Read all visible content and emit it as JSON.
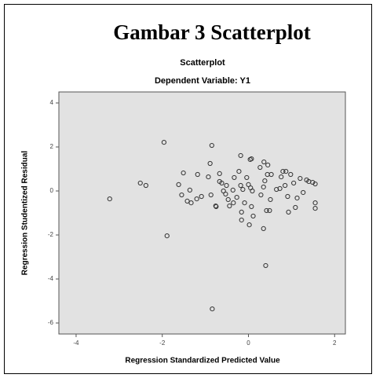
{
  "chart_data": {
    "type": "scatter",
    "title": "Gambar 3 Scatterplot",
    "subtitle": "Scatterplot",
    "caption": "Dependent Variable: Y1",
    "x_label": "Regression Standardized Predicted Value",
    "y_label": "Regression Studentized Residual",
    "xlim": [
      -4.4,
      2.25
    ],
    "xticks": [
      -4,
      -2,
      0,
      2
    ],
    "ylim": [
      -6.5,
      4.5
    ],
    "yticks": [
      -6,
      -4,
      -2,
      0,
      2,
      4
    ],
    "color": "#333333",
    "x": [
      -3.22,
      -2.51,
      -2.38,
      -1.96,
      -1.89,
      -1.62,
      -1.51,
      -1.36,
      -1.42,
      -1.33,
      -1.18,
      -1.2,
      -0.89,
      -0.85,
      -0.93,
      -0.87,
      -0.75,
      -0.67,
      -0.62,
      -0.67,
      -0.58,
      -0.51,
      -0.47,
      -0.44,
      -0.36,
      -0.33,
      -0.27,
      -0.22,
      -0.18,
      -0.18,
      -0.16,
      -0.13,
      -0.09,
      -0.04,
      0,
      0.04,
      0.07,
      0.09,
      0.07,
      0.05,
      -0.16,
      0.02,
      0.11,
      0.27,
      0.29,
      0.35,
      0.36,
      0.38,
      0.42,
      0.44,
      0.45,
      0.49,
      0.51,
      0.35,
      0.4,
      0.53,
      0.65,
      0.73,
      0.76,
      0.8,
      0.87,
      0.85,
      0.91,
      0.93,
      0.98,
      1.05,
      1.09,
      1.13,
      1.2,
      1.27,
      1.35,
      1.4,
      1.49,
      1.55,
      1.55,
      1.55,
      -0.84,
      -1.55,
      -1.09,
      -0.76,
      -0.53,
      -0.35
    ],
    "values": [
      -0.36,
      0.36,
      0.25,
      2.21,
      -2.04,
      0.29,
      0.82,
      0.04,
      -0.46,
      -0.54,
      0.75,
      -0.36,
      1.25,
      2.07,
      0.64,
      -0.18,
      -0.71,
      0.43,
      0.36,
      0.79,
      0,
      0.25,
      -0.39,
      -0.68,
      0.04,
      0.61,
      -0.29,
      0.89,
      0.25,
      1.61,
      -0.96,
      0.07,
      -0.54,
      0.61,
      0.29,
      1.43,
      1.46,
      0,
      -0.71,
      0.14,
      -1.32,
      -1.54,
      -1.14,
      1.07,
      -0.18,
      0.18,
      1.32,
      0.46,
      -0.89,
      0.75,
      1.18,
      -0.89,
      -0.39,
      -1.71,
      -3.39,
      0.75,
      0.07,
      0.11,
      0.64,
      0.89,
      0.89,
      0.25,
      -0.25,
      -0.96,
      0.75,
      0.36,
      -0.75,
      -0.32,
      0.57,
      -0.07,
      0.5,
      0.43,
      0.39,
      0.32,
      -0.54,
      -0.79,
      -5.36,
      -0.18,
      -0.25,
      -0.68,
      -0.14,
      -0.54
    ]
  }
}
